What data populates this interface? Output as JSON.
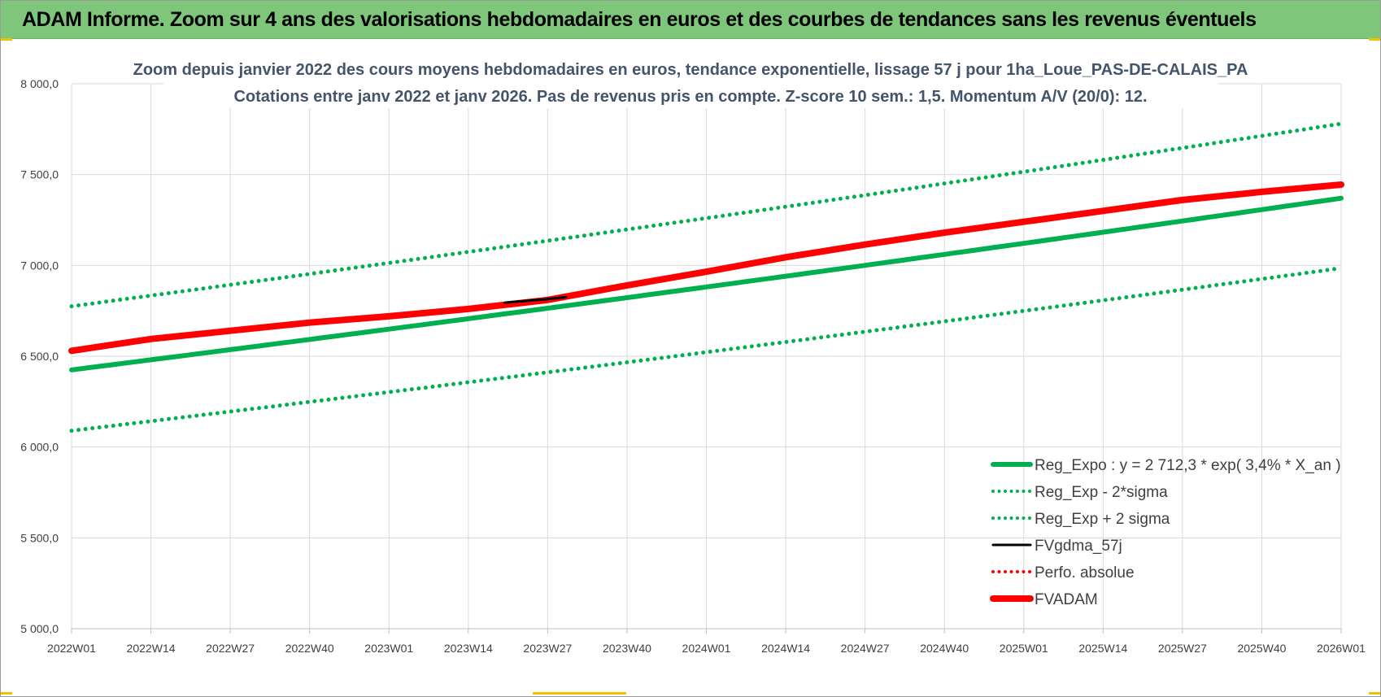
{
  "header": {
    "title": "ADAM Informe. Zoom sur 4 ans des valorisations hebdomadaires en euros et des courbes de tendances sans les revenus éventuels"
  },
  "colors": {
    "banner": "#7dc67a",
    "reg_expo": "#00b050",
    "fvadam": "#ff0000",
    "fvgdma": "#000000",
    "grid": "#d9d9d9",
    "title_text": "#44546a"
  },
  "chart_data": {
    "type": "line",
    "title_lines": [
      "Zoom depuis janvier 2022 des cours moyens hebdomadaires en euros, tendance exponentielle, lissage 57 j pour 1ha_Loue_PAS-DE-CALAIS_PA",
      "Cotations entre janv 2022 et janv 2026. Pas de revenus pris en compte. Z-score 10 sem.: 1,5. Momentum A/V (20/0): 12."
    ],
    "x_tick_labels": [
      "2022W01",
      "2022W14",
      "2022W27",
      "2022W40",
      "2023W01",
      "2023W14",
      "2023W27",
      "2023W40",
      "2024W01",
      "2024W14",
      "2024W27",
      "2024W40",
      "2025W01",
      "2025W14",
      "2025W27",
      "2025W40",
      "2026W01"
    ],
    "y_tick_labels": [
      "8 000,0",
      "7 500,0",
      "7 000,0",
      "6 500,0",
      "6 000,0",
      "5 500,0",
      "5 000,0"
    ],
    "ylim": [
      5000,
      8000
    ],
    "y_ticks": [
      5000,
      5500,
      6000,
      6500,
      7000,
      7500,
      8000
    ],
    "grid": true,
    "legend_position": "bottom-right",
    "series": [
      {
        "name": "Reg_Expo : y = 2 712,3 * exp( 3,4% * X_an )",
        "style": "solid-thick",
        "color": "#00b050",
        "anchor_x": [
          "2022W01",
          "2026W01"
        ],
        "anchor_y": [
          6425,
          7370
        ]
      },
      {
        "name": "Reg_Exp - 2*sigma",
        "style": "dotted",
        "color": "#00b050",
        "anchor_x": [
          "2022W01",
          "2026W01"
        ],
        "anchor_y": [
          6090,
          6985
        ]
      },
      {
        "name": "Reg_Exp + 2 sigma",
        "style": "dotted",
        "color": "#00b050",
        "anchor_x": [
          "2022W01",
          "2026W01"
        ],
        "anchor_y": [
          6775,
          7780
        ]
      },
      {
        "name": "FVgdma_57j",
        "style": "solid",
        "color": "#000000",
        "x": [
          "2023W20",
          "2023W27",
          "2023W30"
        ],
        "y": [
          6795,
          6815,
          6825
        ]
      },
      {
        "name": "Perfo. absolue",
        "style": "dotted",
        "color": "#ff0000",
        "x": [],
        "y": []
      },
      {
        "name": "FVADAM",
        "style": "solid-thick",
        "color": "#ff0000",
        "x": [
          "2022W01",
          "2022W14",
          "2022W27",
          "2022W40",
          "2023W01",
          "2023W14",
          "2023W27",
          "2023W40",
          "2024W01",
          "2024W14",
          "2024W27",
          "2024W40",
          "2025W01",
          "2025W14",
          "2025W27",
          "2025W40",
          "2026W01"
        ],
        "y": [
          6530,
          6595,
          6640,
          6685,
          6720,
          6760,
          6810,
          6890,
          6965,
          7045,
          7115,
          7180,
          7240,
          7300,
          7360,
          7405,
          7445
        ]
      }
    ]
  }
}
